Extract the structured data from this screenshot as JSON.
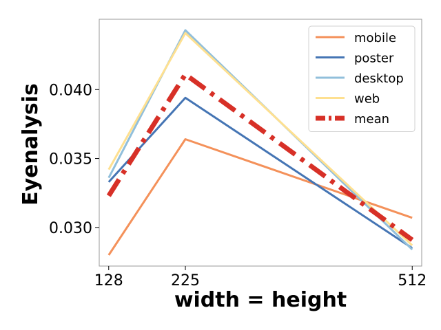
{
  "chart_data": {
    "type": "line",
    "title": "",
    "xlabel": "width = height",
    "ylabel": "Eyenalysis",
    "x": [
      128,
      225,
      512
    ],
    "x_tick_labels": [
      "128",
      "225",
      "512"
    ],
    "y_ticks": [
      0.03,
      0.035,
      0.04
    ],
    "y_tick_labels": [
      "0.030",
      "0.035",
      "0.040"
    ],
    "xlim": [
      116,
      524
    ],
    "ylim": [
      0.0272,
      0.0451
    ],
    "legend_position": "top-right",
    "grid": false,
    "series": [
      {
        "name": "mobile",
        "values": [
          0.028,
          0.0364,
          0.0307
        ],
        "color": "#f4915a",
        "style": "solid",
        "weight": "thin"
      },
      {
        "name": "poster",
        "values": [
          0.0333,
          0.0394,
          0.0285
        ],
        "color": "#4575b4",
        "style": "solid",
        "weight": "thin"
      },
      {
        "name": "desktop",
        "values": [
          0.0336,
          0.0443,
          0.0284
        ],
        "color": "#91bfdb",
        "style": "solid",
        "weight": "thin"
      },
      {
        "name": "web",
        "values": [
          0.0342,
          0.0441,
          0.0287
        ],
        "color": "#fee090",
        "style": "solid",
        "weight": "thin"
      },
      {
        "name": "mean",
        "values": [
          0.0323,
          0.0411,
          0.0291
        ],
        "color": "#d73027",
        "style": "dashdot",
        "weight": "thick"
      }
    ]
  }
}
